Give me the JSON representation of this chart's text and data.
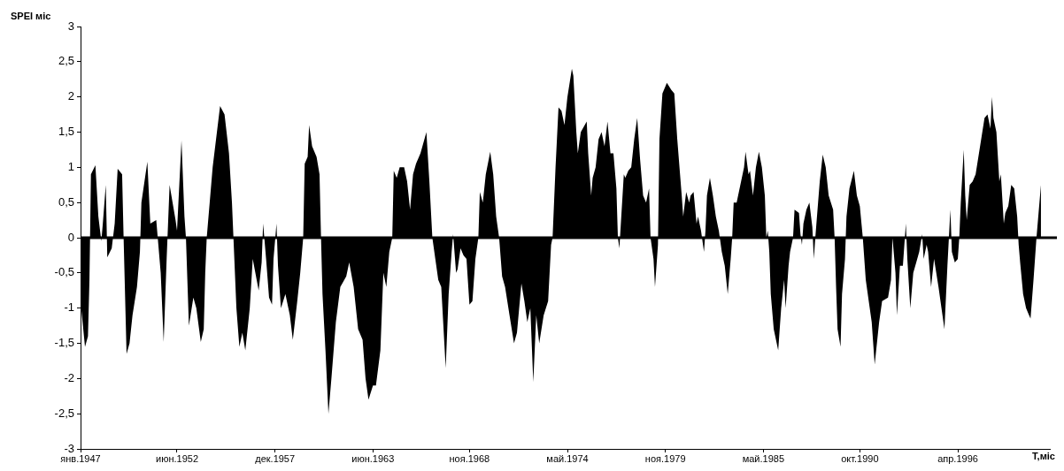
{
  "chart_data": {
    "type": "area",
    "xlabel": "Т,міс",
    "ylabel": "SPEI міс",
    "xlim": [
      "1947-01",
      "2001-06"
    ],
    "xticks": [
      {
        "value": "1947-01",
        "label": "янв.1947"
      },
      {
        "value": "1952-06",
        "label": "июн.1952"
      },
      {
        "value": "1957-12",
        "label": "дек.1957"
      },
      {
        "value": "1963-06",
        "label": "июн.1963"
      },
      {
        "value": "1968-11",
        "label": "ноя.1968"
      },
      {
        "value": "1974-05",
        "label": "май.1974"
      },
      {
        "value": "1979-11",
        "label": "ноя.1979"
      },
      {
        "value": "1985-05",
        "label": "май.1985"
      },
      {
        "value": "1990-10",
        "label": "окт.1990"
      },
      {
        "value": "1996-04",
        "label": "апр.1996"
      }
    ],
    "ylim": [
      -3,
      3
    ],
    "yticks": [
      -3,
      {
        "value": -2.5,
        "label": "-2,5"
      },
      -2,
      {
        "value": -1.5,
        "label": "-1,5"
      },
      -1,
      {
        "value": -0.5,
        "label": "-0,5"
      },
      0,
      {
        "value": 0.5,
        "label": "0,5"
      },
      1,
      {
        "value": 1.5,
        "label": "1,5"
      },
      2,
      {
        "value": 2.5,
        "label": "2,5"
      },
      3
    ],
    "ref_lines": [
      {
        "axis": "y",
        "value": 0,
        "color": "#000000"
      }
    ],
    "marker": "none",
    "series": [
      {
        "color": "#000000",
        "x": [
          "1947-01",
          "1947-04",
          "1947-06",
          "1947-07",
          "1947-08",
          "1947-11",
          "1948-01",
          "1948-03",
          "1948-04",
          "1948-06",
          "1948-07",
          "1948-10",
          "1948-12",
          "1949-02",
          "1949-05",
          "1949-06",
          "1949-08",
          "1949-10",
          "1949-12",
          "1950-03",
          "1950-05",
          "1950-06",
          "1950-10",
          "1950-12",
          "1951-04",
          "1951-05",
          "1951-07",
          "1951-09",
          "1951-11",
          "1952-01",
          "1952-03",
          "1952-05",
          "1952-06",
          "1952-09",
          "1952-11",
          "1952-12",
          "1953-02",
          "1953-05",
          "1953-07",
          "1953-10",
          "1953-12",
          "1954-01",
          "1954-02",
          "1954-04",
          "1954-06",
          "1954-11",
          "1955-02",
          "1955-05",
          "1955-07",
          "1955-08",
          "1955-10",
          "1955-12",
          "1956-02",
          "1956-04",
          "1956-07",
          "1956-09",
          "1957-01",
          "1957-03",
          "1957-04",
          "1957-06",
          "1957-08",
          "1957-10",
          "1957-11",
          "1958-01",
          "1958-02",
          "1958-04",
          "1958-07",
          "1958-10",
          "1958-12",
          "1959-03",
          "1959-05",
          "1959-07",
          "1959-08",
          "1959-10",
          "1959-11",
          "1960-01",
          "1960-04",
          "1960-06",
          "1960-07",
          "1960-08",
          "1960-10",
          "1960-12",
          "1961-02",
          "1961-05",
          "1961-08",
          "1961-12",
          "1962-02",
          "1962-05",
          "1962-08",
          "1962-11",
          "1963-01",
          "1963-03",
          "1963-06",
          "1963-08",
          "1963-11",
          "1964-01",
          "1964-03",
          "1964-05",
          "1964-07",
          "1964-08",
          "1964-10",
          "1964-12",
          "1965-03",
          "1965-05",
          "1965-07",
          "1965-09",
          "1965-11",
          "1966-02",
          "1966-06",
          "1966-08",
          "1966-10",
          "1966-12",
          "1967-02",
          "1967-04",
          "1967-07",
          "1967-09",
          "1967-11",
          "1967-12",
          "1968-02",
          "1968-03",
          "1968-05",
          "1968-07",
          "1968-09",
          "1968-11",
          "1969-01",
          "1969-03",
          "1969-05",
          "1969-06",
          "1969-08",
          "1969-10",
          "1970-01",
          "1970-03",
          "1970-05",
          "1970-07",
          "1970-09",
          "1970-11",
          "1971-02",
          "1971-05",
          "1971-07",
          "1971-10",
          "1971-12",
          "1972-02",
          "1972-04",
          "1972-06",
          "1972-08",
          "1972-10",
          "1973-01",
          "1973-04",
          "1973-06",
          "1973-07",
          "1973-09",
          "1973-11",
          "1974-01",
          "1974-03",
          "1974-05",
          "1974-08",
          "1974-09",
          "1974-11",
          "1974-12",
          "1975-02",
          "1975-06",
          "1975-07",
          "1975-09",
          "1975-10",
          "1975-12",
          "1976-02",
          "1976-04",
          "1976-06",
          "1976-08",
          "1976-10",
          "1976-12",
          "1977-02",
          "1977-03",
          "1977-04",
          "1977-05",
          "1977-07",
          "1977-08",
          "1977-10",
          "1977-12",
          "1978-02",
          "1978-04",
          "1978-06",
          "1978-08",
          "1978-10",
          "1978-12",
          "1979-01",
          "1979-03",
          "1979-04",
          "1979-06",
          "1979-07",
          "1979-09",
          "1979-12",
          "1980-03",
          "1980-05",
          "1980-07",
          "1980-10",
          "1980-11",
          "1981-01",
          "1981-03",
          "1981-04",
          "1981-06",
          "1981-08",
          "1981-09",
          "1981-11",
          "1982-01",
          "1982-02",
          "1982-03",
          "1982-05",
          "1982-07",
          "1982-09",
          "1982-11",
          "1983-01",
          "1983-03",
          "1983-05",
          "1983-07",
          "1983-08",
          "1983-09",
          "1983-11",
          "1984-02",
          "1984-04",
          "1984-05",
          "1984-07",
          "1984-08",
          "1984-10",
          "1984-12",
          "1985-02",
          "1985-04",
          "1985-06",
          "1985-07",
          "1985-08",
          "1985-09",
          "1985-10",
          "1985-12",
          "1986-03",
          "1986-05",
          "1986-07",
          "1986-08",
          "1986-10",
          "1986-11",
          "1987-01",
          "1987-02",
          "1987-05",
          "1987-06",
          "1987-07",
          "1987-08",
          "1987-10",
          "1987-12",
          "1988-02",
          "1988-03",
          "1988-04",
          "1988-07",
          "1988-09",
          "1988-11",
          "1989-01",
          "1989-04",
          "1989-05",
          "1989-06",
          "1989-07",
          "1989-09",
          "1989-10",
          "1989-12",
          "1990-01",
          "1990-03",
          "1990-06",
          "1990-08",
          "1990-10",
          "1990-12",
          "1991-02",
          "1991-04",
          "1991-06",
          "1991-08",
          "1991-11",
          "1992-01",
          "1992-05",
          "1992-07",
          "1992-08",
          "1992-10",
          "1992-11",
          "1993-01",
          "1993-03",
          "1993-05",
          "1993-06",
          "1993-08",
          "1993-10",
          "1993-12",
          "1994-02",
          "1994-04",
          "1994-05",
          "1994-07",
          "1994-08",
          "1994-10",
          "1994-12",
          "1995-03",
          "1995-05",
          "1995-07",
          "1995-09",
          "1995-10",
          "1995-11",
          "1995-12",
          "1996-02",
          "1996-04",
          "1996-05",
          "1996-06",
          "1996-08",
          "1996-09",
          "1996-10",
          "1996-12",
          "1997-02",
          "1997-04",
          "1997-07",
          "1997-10",
          "1997-12",
          "1998-02",
          "1998-03",
          "1998-04",
          "1998-06",
          "1998-08",
          "1998-09",
          "1998-11",
          "1998-12",
          "1999-02",
          "1999-04",
          "1999-06",
          "1999-08",
          "1999-09",
          "1999-10",
          "1999-12",
          "2000-02",
          "2000-04",
          "2000-05",
          "2000-07",
          "2000-09",
          "2000-12"
        ],
        "values": [
          -0.9,
          -1.55,
          -1.4,
          -0.6,
          0.9,
          1.03,
          0.3,
          -0.05,
          0.2,
          0.75,
          -0.28,
          -0.15,
          0.2,
          0.98,
          0.9,
          0,
          -1.65,
          -1.5,
          -1.1,
          -0.7,
          -0.2,
          0.5,
          1.08,
          0.2,
          0.25,
          0,
          -0.5,
          -1.48,
          -0.3,
          0.75,
          0.5,
          0.25,
          0.1,
          1.38,
          0.3,
          0,
          -1.25,
          -0.85,
          -1.0,
          -1.48,
          -1.3,
          -0.5,
          0,
          0.5,
          1.0,
          1.87,
          1.75,
          1.2,
          0.5,
          0,
          -1.0,
          -1.55,
          -1.35,
          -1.6,
          -1.0,
          -0.3,
          -0.75,
          -0.35,
          0.2,
          -0.3,
          -0.85,
          -0.95,
          -0.3,
          0.2,
          -0.4,
          -1.0,
          -0.8,
          -1.1,
          -1.45,
          -0.9,
          -0.5,
          0,
          1.05,
          1.15,
          1.6,
          1.3,
          1.15,
          0.9,
          0,
          -0.8,
          -1.6,
          -2.5,
          -2.0,
          -1.2,
          -0.7,
          -0.55,
          -0.35,
          -0.7,
          -1.3,
          -1.45,
          -2.0,
          -2.3,
          -2.1,
          -2.1,
          -1.6,
          -0.5,
          -0.7,
          -0.2,
          0,
          0.95,
          0.85,
          1.0,
          1.0,
          0.8,
          0.4,
          0.9,
          1.05,
          1.2,
          1.5,
          0.8,
          0,
          -0.3,
          -0.6,
          -0.7,
          -1.85,
          -0.8,
          -0.2,
          0.05,
          -0.5,
          -0.45,
          -0.15,
          -0.25,
          -0.3,
          -0.95,
          -0.9,
          -0.3,
          0,
          0.65,
          0.5,
          0.9,
          1.22,
          0.9,
          0.3,
          0,
          -0.55,
          -0.7,
          -1.1,
          -1.5,
          -1.35,
          -0.65,
          -0.9,
          -1.2,
          -1.0,
          -2.05,
          -1.1,
          -1.5,
          -1.1,
          -0.9,
          -0.1,
          0,
          1.0,
          1.85,
          1.8,
          1.6,
          2.0,
          2.4,
          2.3,
          1.5,
          1.2,
          1.5,
          1.65,
          1.2,
          0.6,
          0.85,
          1.0,
          1.4,
          1.5,
          1.3,
          1.65,
          1.2,
          1.2,
          0.7,
          0,
          -0.15,
          0.2,
          0.9,
          0.85,
          0.95,
          1.0,
          1.4,
          1.7,
          1.1,
          0.6,
          0.5,
          0.7,
          0,
          -0.3,
          -0.7,
          -0.1,
          1.4,
          2.05,
          2.2,
          2.1,
          2.05,
          1.4,
          0.6,
          0.3,
          0.65,
          0.5,
          0.6,
          0.65,
          0.2,
          0.3,
          0.1,
          -0.2,
          0.1,
          0.6,
          0.85,
          0.6,
          0.3,
          0.1,
          -0.2,
          -0.4,
          -0.8,
          -0.3,
          0,
          0.5,
          0.5,
          0.8,
          1.0,
          1.22,
          0.9,
          0.95,
          0.6,
          1.0,
          1.22,
          1.0,
          0.6,
          0,
          0.1,
          -0.2,
          -0.8,
          -1.3,
          -1.6,
          -1.0,
          -0.6,
          -1.0,
          -0.4,
          -0.2,
          0,
          0.4,
          0.35,
          0.05,
          -0.1,
          0.2,
          0.4,
          0.5,
          0.15,
          -0.3,
          0,
          0.8,
          1.18,
          1.0,
          0.6,
          0.4,
          0,
          -0.7,
          -1.3,
          -1.55,
          -0.8,
          -0.3,
          0.3,
          0.7,
          0.95,
          0.6,
          0.45,
          0,
          -0.6,
          -0.9,
          -1.2,
          -1.8,
          -1.2,
          -0.9,
          -0.85,
          -0.6,
          0,
          -0.5,
          -1.1,
          -0.4,
          -0.4,
          0.2,
          -0.3,
          -1.0,
          -0.5,
          -0.35,
          -0.2,
          0.05,
          -0.3,
          -0.1,
          -0.2,
          -0.7,
          -0.3,
          -0.7,
          -1.0,
          -1.3,
          -0.4,
          0,
          0.4,
          -0.2,
          -0.35,
          -0.3,
          0,
          0.5,
          1.25,
          0.6,
          0.25,
          0.75,
          0.8,
          0.9,
          1.3,
          1.7,
          1.75,
          1.55,
          2.0,
          1.7,
          1.5,
          0.8,
          0.9,
          0.2,
          0.35,
          0.45,
          0.75,
          0.7,
          0.3,
          -0.1,
          -0.35,
          -0.8,
          -1.0,
          -1.1,
          -1.15,
          -0.6,
          0,
          0.75
        ]
      }
    ]
  }
}
